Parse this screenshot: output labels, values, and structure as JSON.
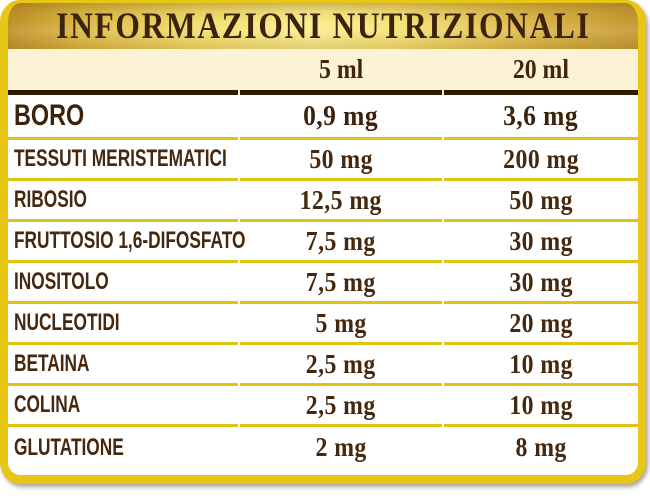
{
  "panel": {
    "title": "INFORMAZIONI NUTRIZIONALI",
    "columns": [
      "5 ml",
      "20 ml"
    ],
    "rows": [
      {
        "label": "BORO",
        "v1": "0,9 mg",
        "v2": "3,6 mg",
        "emphasis": true
      },
      {
        "label": "TESSUTI MERISTEMATICI",
        "v1": "50 mg",
        "v2": "200 mg"
      },
      {
        "label": "RIBOSIO",
        "v1": "12,5 mg",
        "v2": "50 mg"
      },
      {
        "label": "FRUTTOSIO 1,6-DIFOSFATO",
        "v1": "7,5 mg",
        "v2": "30 mg"
      },
      {
        "label": "INOSITOLO",
        "v1": "7,5 mg",
        "v2": "30 mg"
      },
      {
        "label": "NUCLEOTIDI",
        "v1": "5 mg",
        "v2": "20 mg"
      },
      {
        "label": "BETAINA",
        "v1": "2,5 mg",
        "v2": "10 mg"
      },
      {
        "label": "COLINA",
        "v1": "2,5 mg",
        "v2": "10 mg"
      },
      {
        "label": "GLUTATIONE",
        "v1": "2 mg",
        "v2": "8 mg"
      }
    ],
    "colors": {
      "frame_yellow": "#E8C614",
      "header_gold_dark": "#BE9028",
      "header_gold_light": "#FBEE90",
      "cream_background": "#FCF3D4",
      "row_background": "#FFFFFF",
      "text_brown": "#45280E",
      "title_brown": "#3B2310",
      "header_divider_brown": "#2E1A04",
      "row_separator_yellow": "#E0C414"
    }
  }
}
